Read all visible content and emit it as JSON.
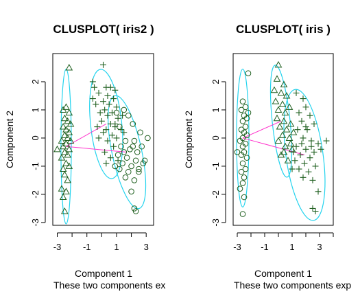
{
  "chart_data": [
    {
      "type": "scatter",
      "title": "CLUSPLOT( iris2 )",
      "xlabel": "Component 1",
      "ylabel": "Component 2",
      "subtitle": "These two components ex",
      "x_ticks": [
        "-3",
        "-1",
        "1",
        "3"
      ],
      "y_ticks": [
        "-3",
        "-2",
        "-1",
        "0",
        "1",
        "2"
      ],
      "xlim": [
        -3.3,
        3.5
      ],
      "ylim": [
        -3.1,
        3.0
      ],
      "colors": {
        "points": "#1f5f1f",
        "ellipse": "#22d3ee",
        "link": "#ff33cc"
      },
      "clusters": [
        {
          "marker": "triangle",
          "center": [
            -2.4,
            -0.3
          ],
          "points": [
            [
              -2.2,
              2.5
            ],
            [
              -2.4,
              1.1
            ],
            [
              -2.6,
              1.0
            ],
            [
              -2.2,
              0.9
            ],
            [
              -2.5,
              0.7
            ],
            [
              -2.3,
              0.6
            ],
            [
              -2.1,
              0.5
            ],
            [
              -2.6,
              0.4
            ],
            [
              -2.4,
              0.3
            ],
            [
              -2.2,
              0.2
            ],
            [
              -2.5,
              0.1
            ],
            [
              -2.3,
              0.0
            ],
            [
              -2.7,
              -0.1
            ],
            [
              -2.1,
              -0.1
            ],
            [
              -2.4,
              -0.2
            ],
            [
              -2.6,
              -0.3
            ],
            [
              -2.2,
              -0.4
            ],
            [
              -2.5,
              -0.5
            ],
            [
              -2.3,
              -0.6
            ],
            [
              -2.7,
              -0.7
            ],
            [
              -2.4,
              -0.9
            ],
            [
              -2.2,
              -1.0
            ],
            [
              -2.6,
              -1.1
            ],
            [
              -2.5,
              -1.3
            ],
            [
              -2.3,
              -1.5
            ],
            [
              -2.7,
              -1.8
            ],
            [
              -2.4,
              -1.9
            ],
            [
              -2.6,
              -2.1
            ],
            [
              -2.5,
              -2.6
            ],
            [
              -3.0,
              -0.4
            ]
          ]
        },
        {
          "marker": "plus",
          "center": [
            0.3,
            0.5
          ],
          "points": [
            [
              0.1,
              2.6
            ],
            [
              -0.6,
              2.0
            ],
            [
              -0.5,
              1.8
            ],
            [
              0.3,
              1.8
            ],
            [
              0.6,
              1.8
            ],
            [
              0.9,
              1.7
            ],
            [
              -0.2,
              1.6
            ],
            [
              0.4,
              1.5
            ],
            [
              0.8,
              1.4
            ],
            [
              0.1,
              1.3
            ],
            [
              -0.4,
              1.2
            ],
            [
              0.5,
              1.2
            ],
            [
              1.0,
              1.1
            ],
            [
              0.2,
              1.0
            ],
            [
              -0.1,
              0.9
            ],
            [
              0.7,
              0.9
            ],
            [
              0.4,
              0.8
            ],
            [
              1.1,
              0.7
            ],
            [
              0.0,
              0.6
            ],
            [
              0.6,
              0.5
            ],
            [
              -0.3,
              0.4
            ],
            [
              0.9,
              0.4
            ],
            [
              0.3,
              0.3
            ],
            [
              1.3,
              0.3
            ],
            [
              0.1,
              0.2
            ],
            [
              0.7,
              0.1
            ],
            [
              -0.2,
              0.0
            ],
            [
              1.0,
              0.0
            ],
            [
              0.4,
              -0.1
            ],
            [
              0.8,
              -0.3
            ],
            [
              0.2,
              -0.5
            ],
            [
              0.6,
              -0.7
            ],
            [
              1.1,
              -0.8
            ],
            [
              0.3,
              -0.9
            ],
            [
              0.9,
              0.5
            ],
            [
              1.4,
              0.8
            ],
            [
              1.5,
              0.2
            ],
            [
              -0.6,
              1.4
            ]
          ]
        },
        {
          "marker": "circle",
          "center": [
            1.7,
            -0.5
          ],
          "points": [
            [
              1.0,
              0.9
            ],
            [
              1.5,
              1.0
            ],
            [
              1.8,
              0.8
            ],
            [
              2.1,
              0.5
            ],
            [
              1.2,
              0.4
            ],
            [
              2.6,
              0.2
            ],
            [
              3.1,
              0.0
            ],
            [
              1.6,
              -0.1
            ],
            [
              2.2,
              -0.1
            ],
            [
              2.7,
              -0.3
            ],
            [
              1.3,
              -0.3
            ],
            [
              1.9,
              -0.4
            ],
            [
              2.4,
              -0.5
            ],
            [
              1.1,
              -0.6
            ],
            [
              1.7,
              -0.7
            ],
            [
              2.3,
              -0.8
            ],
            [
              2.9,
              -0.8
            ],
            [
              1.4,
              -0.9
            ],
            [
              2.0,
              -1.0
            ],
            [
              1.2,
              -1.1
            ],
            [
              1.8,
              -1.2
            ],
            [
              2.5,
              -1.2
            ],
            [
              1.6,
              -1.4
            ],
            [
              2.2,
              -1.5
            ],
            [
              2.0,
              -1.9
            ],
            [
              2.5,
              -1.1
            ],
            [
              2.3,
              -2.6
            ],
            [
              2.2,
              -2.5
            ],
            [
              0.9,
              -1.0
            ],
            [
              1.5,
              -0.5
            ],
            [
              2.8,
              -0.9
            ],
            [
              2.1,
              -0.3
            ]
          ]
        }
      ]
    },
    {
      "type": "scatter",
      "title": "CLUSPLOT( iris )",
      "xlabel": "Component 1",
      "ylabel": "Component 2",
      "subtitle": "These two components exp",
      "x_ticks": [
        "-3",
        "-1",
        "1",
        "3"
      ],
      "y_ticks": [
        "-3",
        "-2",
        "-1",
        "0",
        "1",
        "2"
      ],
      "xlim": [
        -3.3,
        4.0
      ],
      "ylim": [
        -3.1,
        3.0
      ],
      "colors": {
        "points": "#1f5f1f",
        "ellipse": "#22d3ee",
        "link": "#ff33cc"
      },
      "clusters": [
        {
          "marker": "circle",
          "center": [
            -2.6,
            0.0
          ],
          "points": [
            [
              -2.2,
              2.3
            ],
            [
              -2.6,
              1.3
            ],
            [
              -2.4,
              1.1
            ],
            [
              -2.7,
              1.0
            ],
            [
              -2.5,
              0.8
            ],
            [
              -2.3,
              0.7
            ],
            [
              -2.6,
              0.6
            ],
            [
              -2.4,
              0.4
            ],
            [
              -2.7,
              0.3
            ],
            [
              -2.5,
              0.2
            ],
            [
              -2.3,
              0.1
            ],
            [
              -2.6,
              0.0
            ],
            [
              -2.8,
              -0.1
            ],
            [
              -2.4,
              -0.2
            ],
            [
              -2.6,
              -0.3
            ],
            [
              -2.5,
              -0.5
            ],
            [
              -2.7,
              -0.6
            ],
            [
              -2.3,
              -0.7
            ],
            [
              -2.6,
              -0.9
            ],
            [
              -2.4,
              -1.1
            ],
            [
              -2.7,
              -1.2
            ],
            [
              -2.5,
              -1.4
            ],
            [
              -2.6,
              -1.6
            ],
            [
              -2.8,
              -1.8
            ],
            [
              -2.5,
              -2.1
            ],
            [
              -2.6,
              -2.7
            ],
            [
              -3.0,
              -0.5
            ],
            [
              -2.2,
              0.9
            ]
          ]
        },
        {
          "marker": "triangle",
          "center": [
            0.2,
            0.6
          ],
          "points": [
            [
              0.0,
              2.6
            ],
            [
              -0.1,
              2.1
            ],
            [
              0.4,
              1.9
            ],
            [
              -0.3,
              1.7
            ],
            [
              0.2,
              1.6
            ],
            [
              0.6,
              1.5
            ],
            [
              -0.2,
              1.3
            ],
            [
              0.3,
              1.2
            ],
            [
              0.8,
              1.1
            ],
            [
              0.0,
              1.0
            ],
            [
              0.5,
              0.9
            ],
            [
              -0.1,
              0.7
            ],
            [
              0.4,
              0.6
            ],
            [
              0.9,
              0.5
            ],
            [
              0.1,
              0.4
            ],
            [
              0.6,
              0.3
            ],
            [
              1.1,
              0.2
            ],
            [
              0.3,
              0.1
            ],
            [
              0.8,
              0.0
            ],
            [
              0.0,
              -0.1
            ],
            [
              0.5,
              -0.3
            ],
            [
              1.0,
              -0.4
            ],
            [
              0.2,
              -0.6
            ],
            [
              0.7,
              -0.8
            ],
            [
              0.4,
              -0.5
            ],
            [
              0.9,
              -0.2
            ]
          ]
        },
        {
          "marker": "plus",
          "center": [
            1.9,
            -0.6
          ],
          "points": [
            [
              1.3,
              1.6
            ],
            [
              1.8,
              1.4
            ],
            [
              2.0,
              1.1
            ],
            [
              1.5,
              0.9
            ],
            [
              2.3,
              0.8
            ],
            [
              1.7,
              0.6
            ],
            [
              2.6,
              0.5
            ],
            [
              1.4,
              0.3
            ],
            [
              2.1,
              0.3
            ],
            [
              3.5,
              -0.1
            ],
            [
              1.8,
              0.0
            ],
            [
              2.4,
              -0.1
            ],
            [
              2.9,
              -0.2
            ],
            [
              1.3,
              -0.3
            ],
            [
              2.0,
              -0.4
            ],
            [
              2.6,
              -0.5
            ],
            [
              1.6,
              -0.6
            ],
            [
              2.3,
              -0.7
            ],
            [
              1.2,
              -0.8
            ],
            [
              1.9,
              -0.9
            ],
            [
              2.7,
              -1.0
            ],
            [
              1.5,
              -1.1
            ],
            [
              2.2,
              -1.2
            ],
            [
              1.8,
              -1.4
            ],
            [
              2.5,
              -1.5
            ],
            [
              2.9,
              -1.9
            ],
            [
              2.7,
              -2.6
            ],
            [
              2.5,
              -2.5
            ],
            [
              1.1,
              -0.5
            ],
            [
              1.7,
              -0.2
            ],
            [
              2.4,
              -0.3
            ],
            [
              3.1,
              -0.4
            ],
            [
              1.0,
              -1.1
            ],
            [
              2.0,
              0.4
            ]
          ]
        }
      ]
    }
  ]
}
